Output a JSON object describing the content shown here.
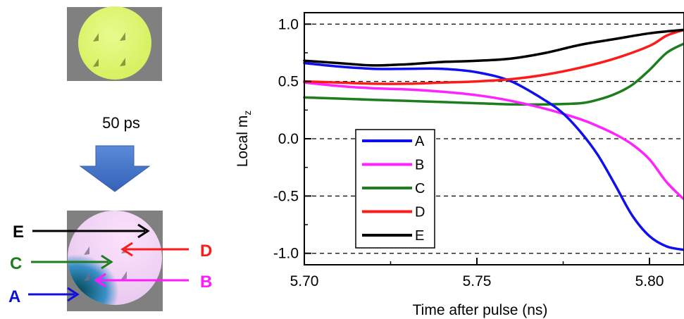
{
  "left_panel": {
    "time_label": "50 ps",
    "markers": [
      {
        "letter": "E",
        "color": "#000000"
      },
      {
        "letter": "C",
        "color": "#1e7d1e"
      },
      {
        "letter": "A",
        "color": "#1010dd"
      },
      {
        "letter": "D",
        "color": "#ff1a1a"
      },
      {
        "letter": "B",
        "color": "#ff1aff"
      }
    ]
  },
  "chart_data": {
    "type": "line",
    "xlabel": "Time after pulse (ns)",
    "ylabel_main": "Local m",
    "ylabel_sub": "z",
    "xlim": [
      5.7,
      5.81
    ],
    "ylim": [
      -1.1,
      1.1
    ],
    "xticks": [
      5.7,
      5.75,
      5.8
    ],
    "xtick_labels": [
      "5.70",
      "5.75",
      "5.80"
    ],
    "yticks": [
      -1.0,
      -0.5,
      0.0,
      0.5,
      1.0
    ],
    "ytick_labels": [
      "-1.0",
      "-0.5",
      "0.0",
      "0.5",
      "1.0"
    ],
    "grid_y_dashed": [
      -1.0,
      -0.5,
      0.0,
      0.5,
      1.0
    ],
    "legend_placement": "lower-left",
    "series": [
      {
        "name": "A",
        "color": "#1010ee",
        "x": [
          5.7,
          5.71,
          5.72,
          5.73,
          5.74,
          5.75,
          5.76,
          5.77,
          5.775,
          5.78,
          5.785,
          5.79,
          5.795,
          5.8,
          5.805,
          5.81
        ],
        "y": [
          0.66,
          0.63,
          0.61,
          0.61,
          0.61,
          0.58,
          0.5,
          0.33,
          0.22,
          0.06,
          -0.14,
          -0.4,
          -0.67,
          -0.85,
          -0.94,
          -0.97
        ]
      },
      {
        "name": "B",
        "color": "#ff22ff",
        "x": [
          5.7,
          5.71,
          5.72,
          5.73,
          5.74,
          5.75,
          5.76,
          5.77,
          5.78,
          5.785,
          5.79,
          5.795,
          5.8,
          5.805,
          5.81
        ],
        "y": [
          0.49,
          0.46,
          0.44,
          0.43,
          0.41,
          0.38,
          0.33,
          0.26,
          0.17,
          0.11,
          0.04,
          -0.05,
          -0.18,
          -0.38,
          -0.53
        ]
      },
      {
        "name": "C",
        "color": "#1e7d1e",
        "x": [
          5.7,
          5.71,
          5.72,
          5.73,
          5.74,
          5.75,
          5.76,
          5.77,
          5.78,
          5.785,
          5.79,
          5.795,
          5.8,
          5.805,
          5.81
        ],
        "y": [
          0.36,
          0.35,
          0.34,
          0.33,
          0.32,
          0.31,
          0.3,
          0.3,
          0.31,
          0.34,
          0.39,
          0.47,
          0.6,
          0.75,
          0.83
        ]
      },
      {
        "name": "D",
        "color": "#ff1a1a",
        "x": [
          5.7,
          5.71,
          5.72,
          5.73,
          5.74,
          5.75,
          5.76,
          5.77,
          5.78,
          5.79,
          5.8,
          5.805,
          5.81
        ],
        "y": [
          0.5,
          0.49,
          0.48,
          0.48,
          0.49,
          0.5,
          0.52,
          0.56,
          0.62,
          0.7,
          0.81,
          0.9,
          0.95
        ]
      },
      {
        "name": "E",
        "color": "#000000",
        "x": [
          5.7,
          5.71,
          5.72,
          5.73,
          5.74,
          5.75,
          5.76,
          5.77,
          5.78,
          5.79,
          5.8,
          5.81
        ],
        "y": [
          0.68,
          0.66,
          0.64,
          0.65,
          0.67,
          0.68,
          0.7,
          0.75,
          0.82,
          0.87,
          0.92,
          0.95
        ]
      }
    ]
  }
}
